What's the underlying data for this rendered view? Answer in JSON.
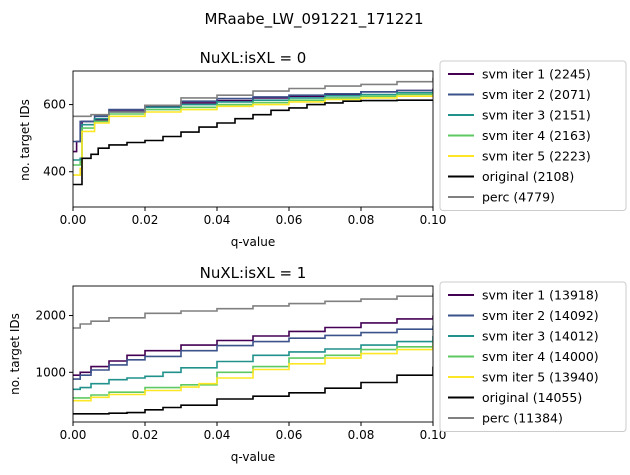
{
  "suptitle": "MRaabe_LW_091221_171221",
  "colors": {
    "svm iter 1": "#440154",
    "svm iter 2": "#3b528b",
    "svm iter 3": "#21918c",
    "svm iter 4": "#5ec962",
    "svm iter 5": "#fde725",
    "original": "#000000",
    "perc": "#808080"
  },
  "chart_data": [
    {
      "type": "line",
      "title": "NuXL:isXL = 0",
      "xlabel": "q-value",
      "ylabel": "no. target IDs",
      "xlim": [
        0,
        0.1
      ],
      "ylim": [
        295,
        700
      ],
      "xticks": [
        0.0,
        0.02,
        0.04,
        0.06,
        0.08,
        0.1
      ],
      "xtick_labels": [
        "0.00",
        "0.02",
        "0.04",
        "0.06",
        "0.08",
        "0.10"
      ],
      "yticks": [
        400,
        600
      ],
      "ytick_labels": [
        "400",
        "600"
      ],
      "grid": false,
      "legend_position": "outside-right",
      "series": [
        {
          "name": "svm iter 1 (2245)",
          "key": "svm iter 1",
          "points": [
            [
              0,
              460
            ],
            [
              0.001,
              460
            ],
            [
              0.001,
              490
            ],
            [
              0.0025,
              490
            ],
            [
              0.0025,
              550
            ],
            [
              0.006,
              555
            ],
            [
              0.01,
              580
            ],
            [
              0.02,
              595
            ],
            [
              0.03,
              605
            ],
            [
              0.04,
              612
            ],
            [
              0.05,
              620
            ],
            [
              0.06,
              625
            ],
            [
              0.07,
              630
            ],
            [
              0.08,
              638
            ],
            [
              0.09,
              642
            ],
            [
              0.1,
              648
            ]
          ]
        },
        {
          "name": "svm iter 2 (2071)",
          "key": "svm iter 2",
          "points": [
            [
              0,
              490
            ],
            [
              0.002,
              490
            ],
            [
              0.002,
              550
            ],
            [
              0.006,
              565
            ],
            [
              0.01,
              585
            ],
            [
              0.02,
              598
            ],
            [
              0.03,
              610
            ],
            [
              0.04,
              618
            ],
            [
              0.05,
              623
            ],
            [
              0.06,
              628
            ],
            [
              0.07,
              632
            ],
            [
              0.08,
              638
            ],
            [
              0.09,
              642
            ],
            [
              0.1,
              645
            ]
          ]
        },
        {
          "name": "svm iter 3 (2151)",
          "key": "svm iter 3",
          "points": [
            [
              0,
              435
            ],
            [
              0.002,
              440
            ],
            [
              0.0025,
              540
            ],
            [
              0.006,
              558
            ],
            [
              0.01,
              578
            ],
            [
              0.02,
              592
            ],
            [
              0.03,
              600
            ],
            [
              0.04,
              608
            ],
            [
              0.05,
              613
            ],
            [
              0.06,
              620
            ],
            [
              0.07,
              626
            ],
            [
              0.08,
              630
            ],
            [
              0.09,
              635
            ],
            [
              0.1,
              640
            ]
          ]
        },
        {
          "name": "svm iter 4 (2163)",
          "key": "svm iter 4",
          "points": [
            [
              0,
              420
            ],
            [
              0.002,
              430
            ],
            [
              0.0025,
              530
            ],
            [
              0.006,
              550
            ],
            [
              0.01,
              572
            ],
            [
              0.02,
              585
            ],
            [
              0.03,
              592
            ],
            [
              0.04,
              600
            ],
            [
              0.05,
              606
            ],
            [
              0.06,
              613
            ],
            [
              0.07,
              620
            ],
            [
              0.08,
              625
            ],
            [
              0.09,
              630
            ],
            [
              0.1,
              635
            ]
          ]
        },
        {
          "name": "svm iter 5 (2223)",
          "key": "svm iter 5",
          "points": [
            [
              0,
              390
            ],
            [
              0.001,
              390
            ],
            [
              0.002,
              410
            ],
            [
              0.0025,
              520
            ],
            [
              0.006,
              545
            ],
            [
              0.01,
              565
            ],
            [
              0.02,
              578
            ],
            [
              0.03,
              585
            ],
            [
              0.04,
              595
            ],
            [
              0.05,
              600
            ],
            [
              0.06,
              608
            ],
            [
              0.07,
              615
            ],
            [
              0.08,
              620
            ],
            [
              0.09,
              625
            ],
            [
              0.1,
              630
            ]
          ]
        },
        {
          "name": "original (2108)",
          "key": "original",
          "points": [
            [
              0,
              362
            ],
            [
              0.0025,
              362
            ],
            [
              0.0025,
              440
            ],
            [
              0.005,
              452
            ],
            [
              0.007,
              470
            ],
            [
              0.01,
              480
            ],
            [
              0.015,
              487
            ],
            [
              0.02,
              493
            ],
            [
              0.025,
              505
            ],
            [
              0.03,
              518
            ],
            [
              0.035,
              533
            ],
            [
              0.04,
              545
            ],
            [
              0.045,
              558
            ],
            [
              0.05,
              570
            ],
            [
              0.055,
              583
            ],
            [
              0.06,
              590
            ],
            [
              0.065,
              600
            ],
            [
              0.07,
              605
            ],
            [
              0.075,
              610
            ],
            [
              0.08,
              612
            ],
            [
              0.09,
              613
            ],
            [
              0.1,
              613
            ]
          ]
        },
        {
          "name": "perc (4779)",
          "key": "perc",
          "points": [
            [
              0,
              565
            ],
            [
              0.005,
              570
            ],
            [
              0.01,
              578
            ],
            [
              0.02,
              598
            ],
            [
              0.03,
              620
            ],
            [
              0.04,
              628
            ],
            [
              0.05,
              640
            ],
            [
              0.06,
              648
            ],
            [
              0.07,
              655
            ],
            [
              0.08,
              660
            ],
            [
              0.09,
              668
            ],
            [
              0.1,
              680
            ]
          ]
        }
      ]
    },
    {
      "type": "line",
      "title": "NuXL:isXL = 1",
      "xlabel": "q-value",
      "ylabel": "no. target IDs",
      "xlim": [
        0,
        0.1
      ],
      "ylim": [
        125,
        2520
      ],
      "xticks": [
        0.0,
        0.02,
        0.04,
        0.06,
        0.08,
        0.1
      ],
      "xtick_labels": [
        "0.00",
        "0.02",
        "0.04",
        "0.06",
        "0.08",
        "0.10"
      ],
      "yticks": [
        1000,
        2000
      ],
      "ytick_labels": [
        "1000",
        "2000"
      ],
      "grid": false,
      "legend_position": "outside-right",
      "series": [
        {
          "name": "svm iter 1 (13918)",
          "key": "svm iter 1",
          "points": [
            [
              0,
              950
            ],
            [
              0.002,
              1000
            ],
            [
              0.005,
              1100
            ],
            [
              0.01,
              1200
            ],
            [
              0.015,
              1300
            ],
            [
              0.02,
              1380
            ],
            [
              0.03,
              1480
            ],
            [
              0.04,
              1560
            ],
            [
              0.05,
              1640
            ],
            [
              0.06,
              1720
            ],
            [
              0.07,
              1790
            ],
            [
              0.08,
              1870
            ],
            [
              0.09,
              1940
            ],
            [
              0.1,
              2000
            ]
          ]
        },
        {
          "name": "svm iter 2 (14092)",
          "key": "svm iter 2",
          "points": [
            [
              0,
              880
            ],
            [
              0.002,
              950
            ],
            [
              0.005,
              1040
            ],
            [
              0.01,
              1130
            ],
            [
              0.015,
              1220
            ],
            [
              0.02,
              1280
            ],
            [
              0.03,
              1380
            ],
            [
              0.04,
              1470
            ],
            [
              0.05,
              1540
            ],
            [
              0.06,
              1600
            ],
            [
              0.07,
              1650
            ],
            [
              0.08,
              1700
            ],
            [
              0.09,
              1760
            ],
            [
              0.1,
              1820
            ]
          ]
        },
        {
          "name": "svm iter 3 (14012)",
          "key": "svm iter 3",
          "points": [
            [
              0,
              700
            ],
            [
              0.002,
              730
            ],
            [
              0.005,
              800
            ],
            [
              0.01,
              870
            ],
            [
              0.015,
              900
            ],
            [
              0.02,
              930
            ],
            [
              0.025,
              1000
            ],
            [
              0.03,
              1080
            ],
            [
              0.04,
              1190
            ],
            [
              0.05,
              1300
            ],
            [
              0.06,
              1360
            ],
            [
              0.07,
              1410
            ],
            [
              0.08,
              1480
            ],
            [
              0.09,
              1540
            ],
            [
              0.1,
              1640
            ]
          ]
        },
        {
          "name": "svm iter 4 (14000)",
          "key": "svm iter 4",
          "points": [
            [
              0,
              550
            ],
            [
              0.005,
              600
            ],
            [
              0.01,
              650
            ],
            [
              0.02,
              730
            ],
            [
              0.03,
              780
            ],
            [
              0.04,
              1000
            ],
            [
              0.05,
              1100
            ],
            [
              0.06,
              1250
            ],
            [
              0.07,
              1300
            ],
            [
              0.08,
              1400
            ],
            [
              0.09,
              1450
            ],
            [
              0.1,
              1540
            ]
          ]
        },
        {
          "name": "svm iter 5 (13940)",
          "key": "svm iter 5",
          "points": [
            [
              0,
              500
            ],
            [
              0.005,
              560
            ],
            [
              0.01,
              610
            ],
            [
              0.02,
              680
            ],
            [
              0.03,
              740
            ],
            [
              0.035,
              800
            ],
            [
              0.04,
              900
            ],
            [
              0.05,
              1050
            ],
            [
              0.06,
              1150
            ],
            [
              0.07,
              1250
            ],
            [
              0.08,
              1330
            ],
            [
              0.09,
              1400
            ],
            [
              0.1,
              1470
            ]
          ]
        },
        {
          "name": "original (14055)",
          "key": "original",
          "points": [
            [
              0,
              270
            ],
            [
              0.005,
              270
            ],
            [
              0.01,
              280
            ],
            [
              0.015,
              290
            ],
            [
              0.02,
              340
            ],
            [
              0.025,
              380
            ],
            [
              0.03,
              420
            ],
            [
              0.04,
              530
            ],
            [
              0.05,
              580
            ],
            [
              0.06,
              640
            ],
            [
              0.07,
              720
            ],
            [
              0.08,
              820
            ],
            [
              0.09,
              950
            ],
            [
              0.1,
              1100
            ]
          ]
        },
        {
          "name": "perc (11384)",
          "key": "perc",
          "points": [
            [
              0,
              1780
            ],
            [
              0.002,
              1850
            ],
            [
              0.005,
              1900
            ],
            [
              0.01,
              1960
            ],
            [
              0.02,
              2040
            ],
            [
              0.03,
              2080
            ],
            [
              0.04,
              2120
            ],
            [
              0.05,
              2170
            ],
            [
              0.06,
              2210
            ],
            [
              0.07,
              2250
            ],
            [
              0.08,
              2290
            ],
            [
              0.09,
              2340
            ],
            [
              0.1,
              2390
            ]
          ]
        }
      ]
    }
  ]
}
